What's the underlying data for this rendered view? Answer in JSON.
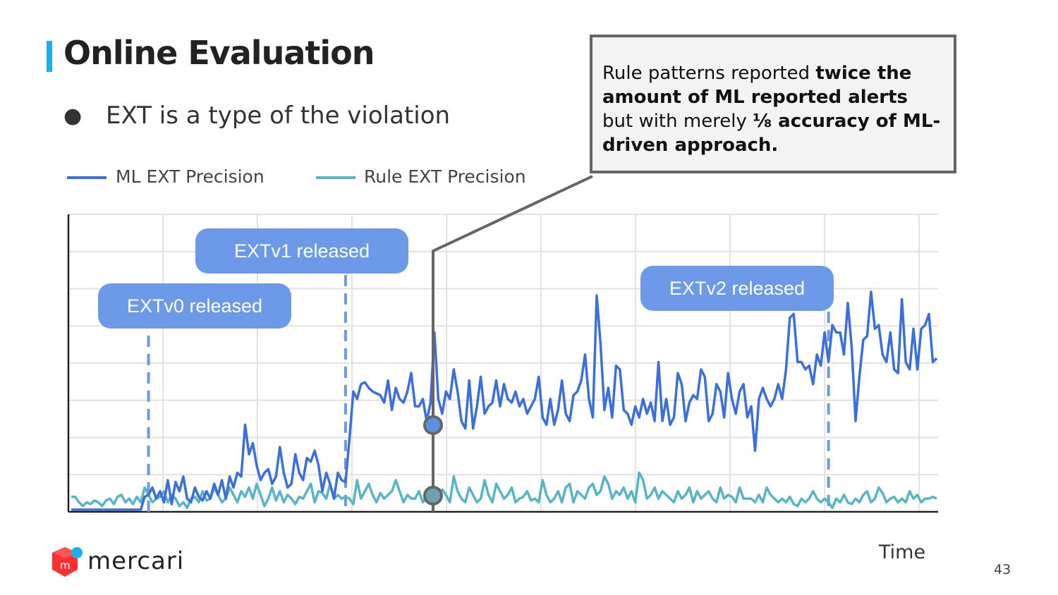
{
  "title": "Online Evaluation",
  "bullet": "EXT is a type of the violation",
  "callout": {
    "p1": "Rule patterns reported ",
    "b1": "twice the amount of ML reported alerts",
    "p2": " but with merely ",
    "b2": "⅛ accuracy of ML-driven approach."
  },
  "colors": {
    "ml": "#3a6fdc",
    "rule": "#56b6c6",
    "accent": "#1ab0f0",
    "release": "#6c9ae8"
  },
  "chart_data": {
    "type": "line",
    "x": "index (time)",
    "xlabel": "Time",
    "ylabel": "",
    "grid": true,
    "legend": "top-left",
    "ylim": [
      0,
      8
    ],
    "series": [
      {
        "name": "ML EXT Precision",
        "values": [
          0.0,
          0.0,
          0.0,
          0.0,
          0.0,
          0.0,
          0.0,
          0.0,
          0.0,
          0.0,
          0.0,
          0.0,
          0.0,
          0.0,
          0.0,
          0.0,
          0.0,
          0.0,
          0.0,
          0.35,
          0.4,
          0.6,
          0.3,
          0.5,
          0.2,
          0.8,
          0.15,
          0.75,
          0.5,
          0.9,
          0.3,
          0.2,
          0.6,
          0.35,
          0.25,
          0.5,
          0.3,
          0.7,
          0.4,
          0.8,
          0.3,
          0.9,
          0.6,
          1.0,
          0.9,
          2.3,
          1.5,
          1.8,
          1.2,
          0.8,
          1.0,
          1.1,
          0.7,
          0.9,
          1.7,
          1.0,
          0.6,
          0.7,
          1.5,
          1.0,
          0.8,
          1.4,
          1.3,
          1.6,
          1.2,
          0.5,
          1.0,
          0.7,
          0.3,
          1.0,
          0.8,
          0.75,
          1.9,
          3.2,
          3.0,
          3.4,
          3.45,
          3.3,
          3.2,
          3.15,
          3.1,
          2.9,
          3.5,
          2.7,
          3.3,
          3.0,
          2.9,
          3.2,
          3.7,
          2.8,
          2.8,
          3.0,
          2.4,
          2.9,
          4.8,
          3.0,
          2.6,
          3.2,
          3.0,
          3.8,
          3.2,
          2.4,
          2.2,
          3.5,
          2.2,
          2.8,
          3.6,
          2.6,
          2.8,
          2.9,
          3.5,
          2.8,
          3.4,
          3.0,
          2.9,
          3.2,
          2.8,
          3.0,
          2.6,
          2.8,
          3.0,
          3.6,
          2.5,
          2.3,
          3.0,
          2.3,
          2.7,
          3.5,
          2.6,
          2.4,
          3.1,
          3.2,
          3.5,
          4.2,
          3.0,
          2.5,
          5.8,
          4.5,
          2.7,
          3.3,
          2.5,
          3.9,
          3.8,
          2.7,
          2.6,
          2.3,
          2.8,
          2.5,
          3.0,
          2.6,
          2.9,
          2.4,
          4.0,
          2.4,
          3.0,
          2.3,
          2.5,
          3.7,
          3.4,
          2.4,
          2.9,
          3.1,
          3.0,
          3.8,
          3.6,
          2.4,
          2.6,
          3.4,
          3.2,
          2.5,
          3.7,
          3.0,
          2.6,
          3.2,
          3.4,
          2.5,
          2.8,
          1.6,
          3.0,
          3.3,
          3.0,
          2.8,
          3.0,
          3.4,
          3.0,
          3.8,
          5.2,
          5.3,
          4.0,
          4.0,
          3.8,
          3.9,
          3.4,
          4.2,
          3.9,
          4.8,
          4.0,
          5.0,
          4.8,
          4.8,
          4.2,
          5.6,
          4.4,
          2.4,
          3.6,
          4.6,
          4.7,
          5.9,
          4.9,
          5.0,
          4.2,
          4.0,
          4.8,
          3.8,
          3.7,
          5.7,
          4.0,
          3.8,
          4.9,
          3.8,
          4.9,
          5.0,
          5.3,
          4.0,
          4.1
        ]
      },
      {
        "name": "Rule EXT Precision",
        "values": [
          0.35,
          0.35,
          0.2,
          0.1,
          0.2,
          0.15,
          0.25,
          0.2,
          0.1,
          0.25,
          0.3,
          0.15,
          0.35,
          0.4,
          0.2,
          0.3,
          0.15,
          0.35,
          0.2,
          0.6,
          0.4,
          0.2,
          0.3,
          0.35,
          0.5,
          0.2,
          0.4,
          0.3,
          0.1,
          0.2,
          0.05,
          0.3,
          0.35,
          0.2,
          0.5,
          0.25,
          0.3,
          0.6,
          0.4,
          0.2,
          0.3,
          0.6,
          0.4,
          0.2,
          0.5,
          0.35,
          0.6,
          0.3,
          0.7,
          0.4,
          0.1,
          0.3,
          0.6,
          0.25,
          0.5,
          0.2,
          0.4,
          0.3,
          0.15,
          0.35,
          0.3,
          0.5,
          0.7,
          0.2,
          0.5,
          0.45,
          0.3,
          0.7,
          0.3,
          0.4,
          0.3,
          0.35,
          0.3,
          0.15,
          0.8,
          0.3,
          0.5,
          0.7,
          0.4,
          0.2,
          0.45,
          0.3,
          0.4,
          0.5,
          0.8,
          0.5,
          0.2,
          0.4,
          0.3,
          0.3,
          0.5,
          0.2,
          0.35,
          0.6,
          0.2,
          0.4,
          0.55,
          0.4,
          0.2,
          0.9,
          0.5,
          0.3,
          0.2,
          0.6,
          0.4,
          0.2,
          0.3,
          0.8,
          0.4,
          0.2,
          0.7,
          0.5,
          0.3,
          0.4,
          0.6,
          0.2,
          0.3,
          0.35,
          0.5,
          0.25,
          0.3,
          0.2,
          0.8,
          0.4,
          0.2,
          0.3,
          0.5,
          0.2,
          0.6,
          0.7,
          0.2,
          0.5,
          0.4,
          0.3,
          0.6,
          0.7,
          0.4,
          0.5,
          0.9,
          0.7,
          0.3,
          0.5,
          0.4,
          0.6,
          0.3,
          0.5,
          0.2,
          1.0,
          0.8,
          0.3,
          0.4,
          0.6,
          0.3,
          0.5,
          0.4,
          0.3,
          0.2,
          0.5,
          0.3,
          0.4,
          0.6,
          0.2,
          0.5,
          0.3,
          0.4,
          0.5,
          0.3,
          0.2,
          0.6,
          0.3,
          0.4,
          0.35,
          0.2,
          0.6,
          0.3,
          0.3,
          0.3,
          0.2,
          0.4,
          0.2,
          0.6,
          0.4,
          0.3,
          0.2,
          0.3,
          0.2,
          0.35,
          0.15,
          0.1,
          0.3,
          0.2,
          0.3,
          0.5,
          0.3,
          0.2,
          0.3,
          0.2,
          0.05,
          0.3,
          0.2,
          0.4,
          0.2,
          0.15,
          0.3,
          0.2,
          0.4,
          0.5,
          0.2,
          0.3,
          0.6,
          0.45,
          0.2,
          0.3,
          0.35,
          0.2,
          0.3,
          0.2,
          0.5,
          0.3,
          0.4,
          0.2,
          0.3,
          0.3,
          0.35,
          0.3
        ]
      }
    ],
    "annotations": [
      {
        "label": "EXTv0 released",
        "x_index": 20
      },
      {
        "label": "EXTv1 released",
        "x_index": 71
      },
      {
        "label": "EXTv2 released",
        "x_index": 196
      }
    ]
  },
  "page_number": "43",
  "logo": "mercari"
}
